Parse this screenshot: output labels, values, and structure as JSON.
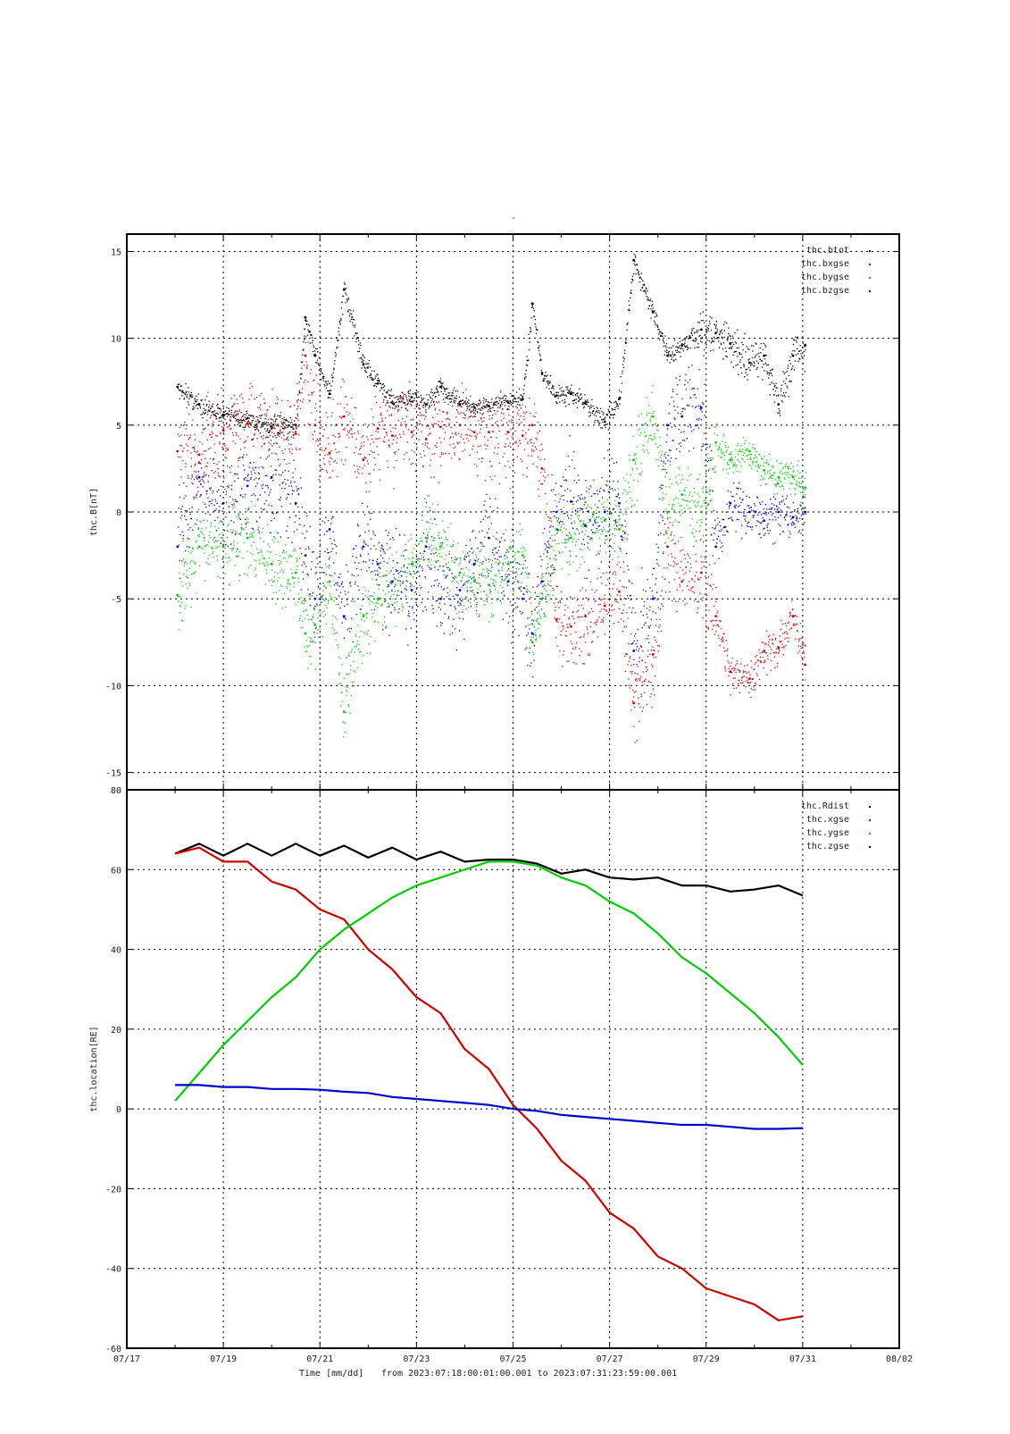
{
  "title_mark": "-",
  "footer": {
    "xlabel": "Time [mm/dd]",
    "range_text": "from 2023:07:18:00:01:00.001  to  2023:07:31:23:59:00.001"
  },
  "x_ticks": [
    "07/17",
    "07/19",
    "07/21",
    "07/23",
    "07/25",
    "07/27",
    "07/29",
    "07/31",
    "08/02"
  ],
  "chart_data": [
    {
      "type": "scatter",
      "ylabel": "thc.B[nT]",
      "xlim": [
        "07/17",
        "08/02"
      ],
      "ylim": [
        -16,
        16
      ],
      "yticks": [
        -15,
        -10,
        -5,
        0,
        5,
        10,
        15
      ],
      "grid": true,
      "legend_position": "top-right",
      "x": [
        1.05,
        1.5,
        2.0,
        2.5,
        3.0,
        3.5,
        3.7,
        3.9,
        4.2,
        4.5,
        4.9,
        5.2,
        5.5,
        5.9,
        6.2,
        6.5,
        6.9,
        7.2,
        7.5,
        7.9,
        8.2,
        8.4,
        8.6,
        8.9,
        9.2,
        9.5,
        9.9,
        10.2,
        10.5,
        10.9,
        11.2,
        11.5,
        11.9,
        12.2,
        12.5,
        12.9,
        13.2,
        13.5,
        13.8,
        14.05
      ],
      "series": [
        {
          "name": "thc.btot",
          "color": "#000000",
          "values": [
            7.2,
            6.2,
            5.6,
            5.4,
            4.9,
            5.0,
            11.2,
            9.0,
            6.8,
            12.8,
            8.5,
            7.4,
            6.3,
            6.6,
            6.2,
            7.2,
            6.2,
            6.0,
            6.1,
            6.3,
            6.5,
            12.0,
            8.0,
            6.7,
            6.8,
            6.3,
            5.2,
            6.5,
            14.5,
            11.5,
            9.0,
            9.6,
            10.5,
            10.3,
            9.7,
            8.6,
            9.0,
            6.2,
            9.0,
            9.6
          ]
        },
        {
          "name": "thc.bxgse",
          "color": "#d40000",
          "values": [
            3.5,
            3.3,
            4.7,
            5.1,
            4.8,
            4.5,
            9.0,
            5.0,
            3.4,
            5.5,
            3.0,
            4.8,
            4.4,
            4.6,
            4.2,
            4.9,
            5.0,
            4.6,
            4.6,
            4.6,
            4.4,
            5.0,
            2.5,
            -6.2,
            -6.6,
            -6.0,
            -5.4,
            -4.6,
            -11.0,
            -8.2,
            -2.0,
            -4.0,
            -3.5,
            -6.0,
            -9.2,
            -9.6,
            -8.0,
            -7.8,
            -6.0,
            -8.8
          ]
        },
        {
          "name": "thc.bygse",
          "color": "#00cc00",
          "values": [
            -4.8,
            -2.0,
            -2.0,
            -1.5,
            -3.0,
            -3.5,
            -7.0,
            -6.5,
            -4.0,
            -11.5,
            -6.0,
            -5.0,
            -4.0,
            -3.0,
            -1.5,
            -2.0,
            -3.5,
            -4.0,
            -4.2,
            -3.0,
            -2.5,
            -7.5,
            -5.0,
            -1.0,
            -1.5,
            -0.8,
            -0.5,
            -1.0,
            3.0,
            5.5,
            0.0,
            1.0,
            0.0,
            4.0,
            3.0,
            3.5,
            2.4,
            2.0,
            2.0,
            1.4
          ]
        },
        {
          "name": "thc.bzgse",
          "color": "#0000cc",
          "values": [
            -2.0,
            2.0,
            0.5,
            1.5,
            2.0,
            0.5,
            -2.5,
            -5.0,
            -1.0,
            -6.0,
            -2.0,
            -3.0,
            -4.0,
            -4.5,
            -2.0,
            -5.0,
            -4.5,
            -3.0,
            -1.5,
            -4.0,
            -5.0,
            -7.0,
            -4.0,
            0.0,
            0.6,
            -0.8,
            0.0,
            0.5,
            -8.0,
            -5.0,
            5.0,
            5.5,
            6.0,
            -2.0,
            0.5,
            0.0,
            -0.5,
            0.0,
            -0.3,
            0.0
          ]
        }
      ]
    },
    {
      "type": "line",
      "ylabel": "thc.location[RE]",
      "xlim": [
        "07/17",
        "08/02"
      ],
      "ylim": [
        -60,
        80
      ],
      "yticks": [
        -60,
        -40,
        -20,
        0,
        20,
        40,
        60,
        80
      ],
      "grid": true,
      "legend_position": "top-right",
      "x": [
        1.0,
        1.5,
        2.0,
        2.5,
        3.0,
        3.5,
        4.0,
        4.5,
        5.0,
        5.5,
        6.0,
        6.5,
        7.0,
        7.5,
        8.0,
        8.5,
        9.0,
        9.5,
        10.0,
        10.5,
        11.0,
        11.5,
        12.0,
        12.5,
        13.0,
        13.5,
        14.0
      ],
      "series": [
        {
          "name": "thc.Rdist",
          "color": "#000000",
          "values": [
            64,
            66.5,
            63.5,
            66.5,
            63.5,
            66.5,
            63.5,
            66,
            63,
            65.5,
            62.5,
            64.5,
            62,
            62.5,
            62.5,
            61.5,
            59,
            60,
            58,
            57.5,
            58,
            56,
            56,
            54.5,
            55,
            56,
            53.5
          ]
        },
        {
          "name": "thc.xgse",
          "color": "#cc0000",
          "values": [
            64,
            65.5,
            62,
            62,
            57,
            55,
            50,
            47.5,
            40,
            35,
            28,
            24,
            15,
            10,
            1,
            -5,
            -13,
            -18,
            -26,
            -30,
            -37,
            -40,
            -45,
            -47,
            -49,
            -53,
            -52
          ]
        },
        {
          "name": "thc.ygse",
          "color": "#00cc00",
          "values": [
            2,
            9,
            16,
            22,
            28,
            33,
            40,
            45,
            49,
            53,
            56,
            58,
            60,
            62,
            62,
            61,
            58,
            56,
            52,
            49,
            44,
            38,
            34,
            29,
            24,
            18,
            11
          ]
        },
        {
          "name": "thc.zgse",
          "color": "#0000cc",
          "values": [
            6,
            6,
            5.5,
            5.5,
            5,
            5,
            4.8,
            4.3,
            4,
            3,
            2.5,
            2,
            1.5,
            1,
            0,
            -0.5,
            -1.5,
            -2,
            -2.5,
            -3,
            -3.5,
            -4,
            -4,
            -4.5,
            -5,
            -5,
            -4.8
          ]
        }
      ]
    }
  ]
}
